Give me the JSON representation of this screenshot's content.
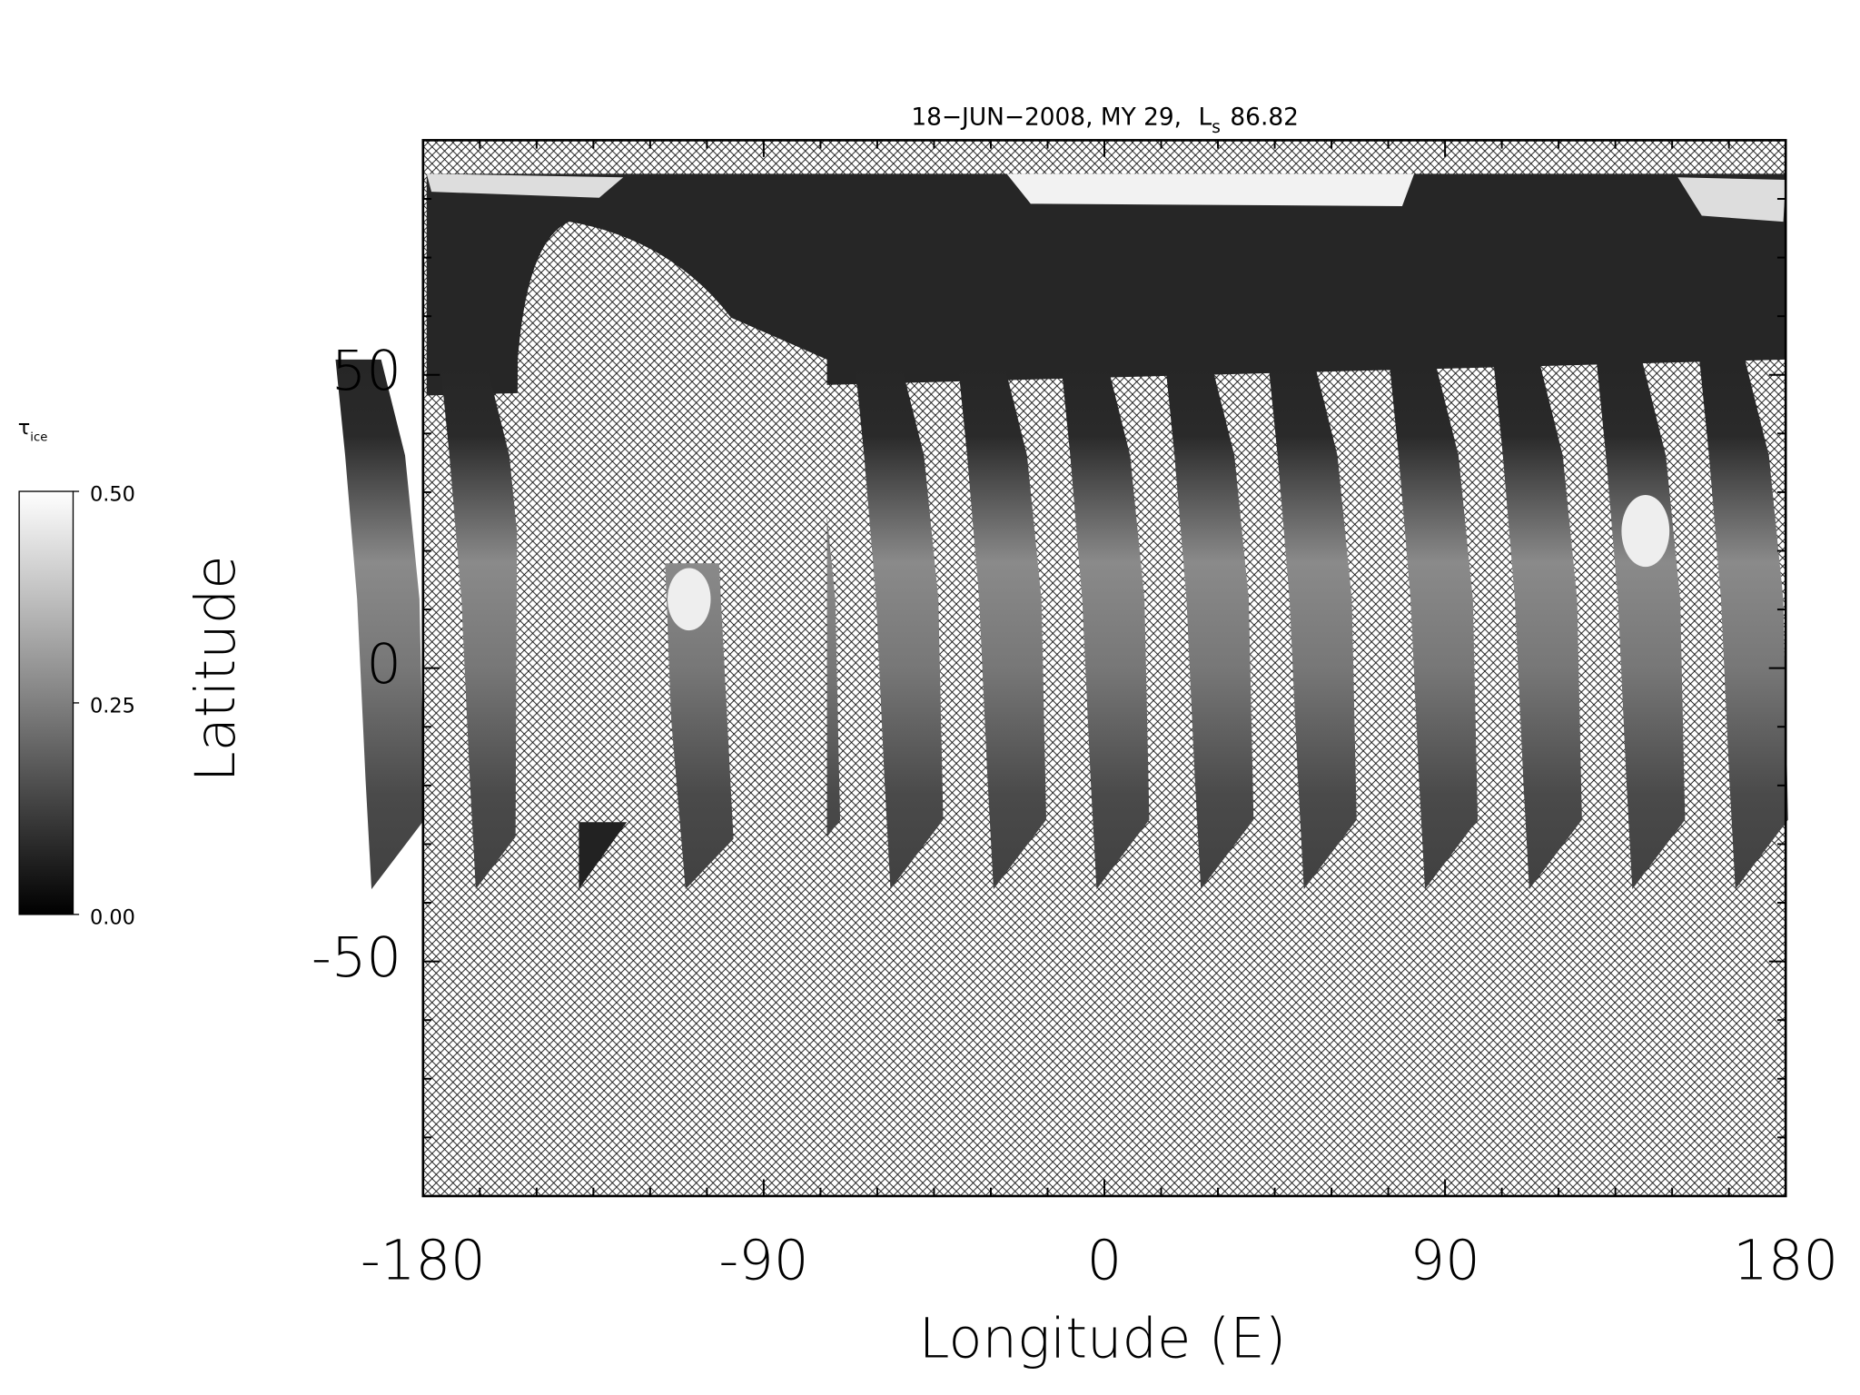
{
  "chart_data": {
    "type": "map",
    "title": {
      "text": "18−JUN−2008, MY 29,",
      "symbol": "L",
      "subscript": "s",
      "value": "86.82"
    },
    "xlabel": "Longitude (E)",
    "ylabel": "Latitude",
    "xlim": [
      -180,
      180
    ],
    "xticks": [
      -180,
      -90,
      0,
      90,
      180
    ],
    "xminor_ticks": [
      -165,
      -150,
      -135,
      -120,
      -105,
      -75,
      -60,
      -45,
      -30,
      -15,
      15,
      30,
      45,
      60,
      75,
      105,
      120,
      135,
      150,
      165
    ],
    "ylim": [
      -90,
      90
    ],
    "yticks": [
      -50,
      0,
      50
    ],
    "yminor_ticks": [
      -80,
      -70,
      -60,
      -40,
      -30,
      -20,
      -10,
      10,
      20,
      30,
      40,
      60,
      70,
      80
    ],
    "colorbar": {
      "label": "τ",
      "label_subscript": "ice",
      "lim": [
        0,
        0.5
      ],
      "ticks": [
        {
          "value": 0,
          "label": "0.00"
        },
        {
          "value": 0.25,
          "label": "0.25"
        },
        {
          "value": 0.5,
          "label": "0.50"
        }
      ]
    }
  }
}
